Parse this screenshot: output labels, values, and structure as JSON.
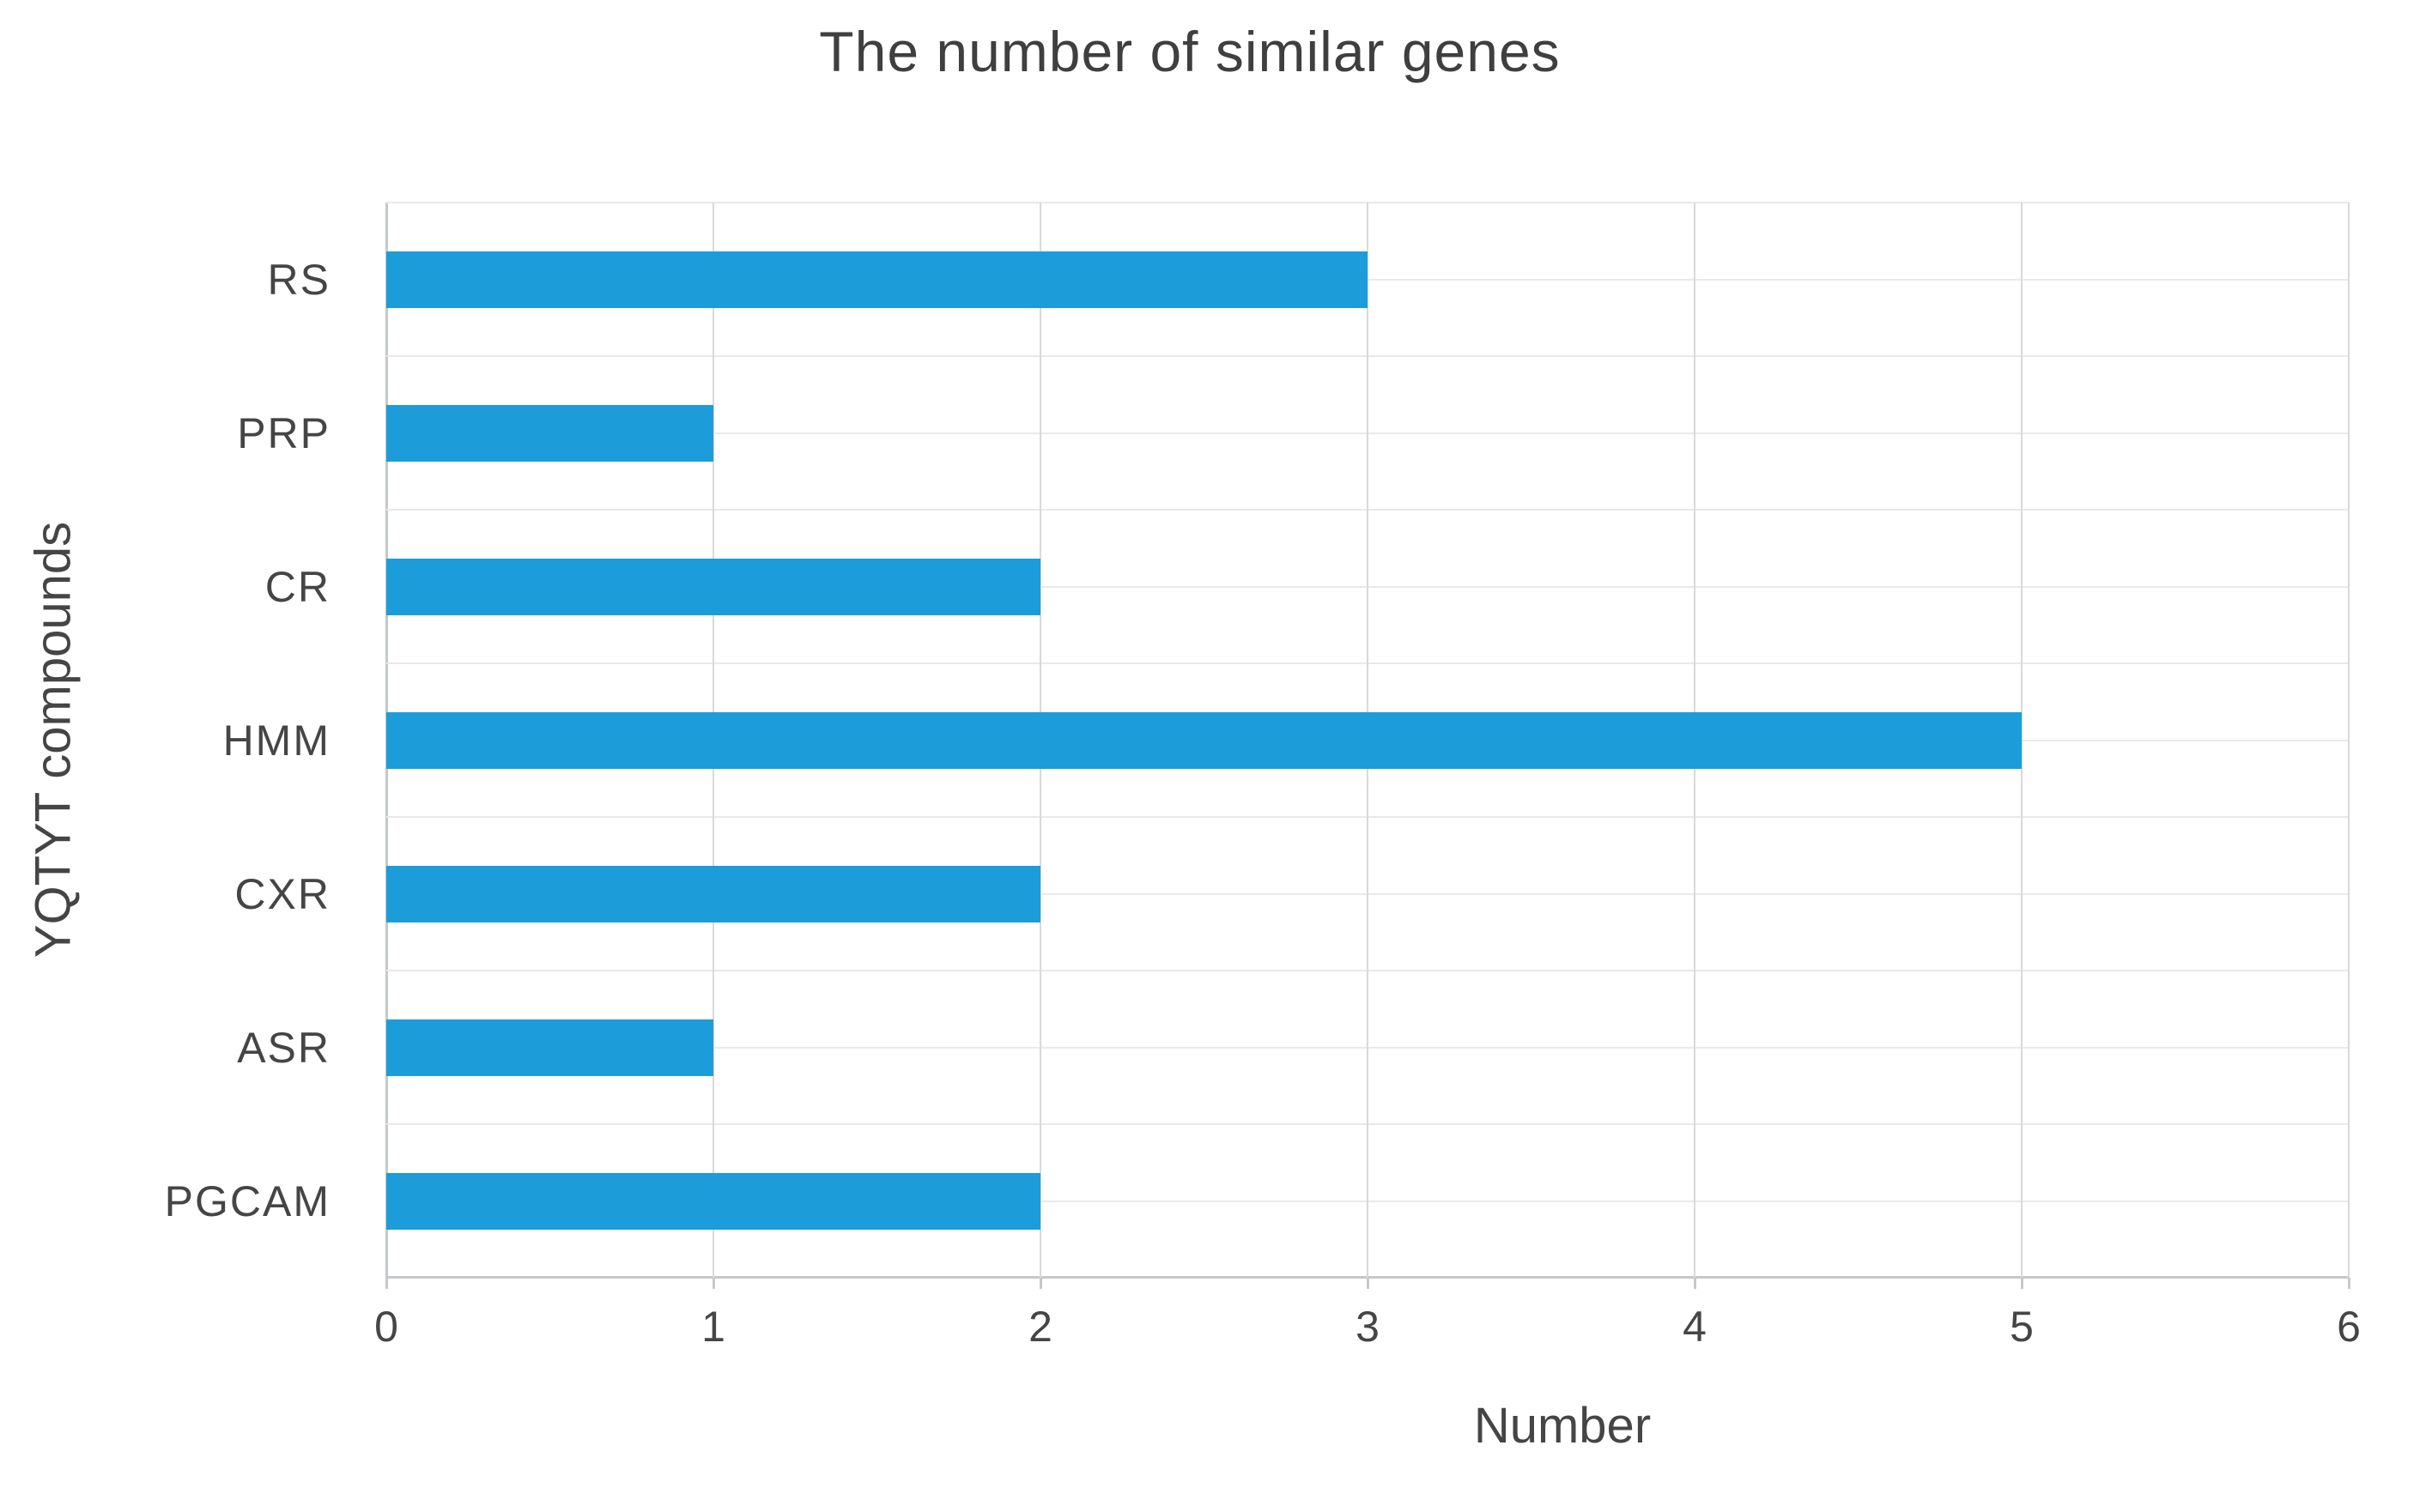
{
  "chart_data": {
    "type": "bar",
    "orientation": "horizontal",
    "title": "The number of similar genes",
    "xlabel": "Number",
    "ylabel": "YQTYT compounds",
    "categories": [
      "RS",
      "PRP",
      "CR",
      "HMM",
      "CXR",
      "ASR",
      "PGCAM"
    ],
    "values": [
      3,
      1,
      2,
      5,
      2,
      1,
      2
    ],
    "xlim": [
      0,
      6
    ],
    "xticks": [
      0,
      1,
      2,
      3,
      4,
      5,
      6
    ],
    "grid": "on",
    "legend": "none",
    "bar_color": "#1C9CD9",
    "h_gridline_color": "#E9E9E9",
    "v_gridline_color": "#D9D9D9",
    "axis_line_color": "#C5C8CA",
    "title_color": "#3F3F3F",
    "text_color": "#454545",
    "background_color": "#FFFFFF"
  }
}
